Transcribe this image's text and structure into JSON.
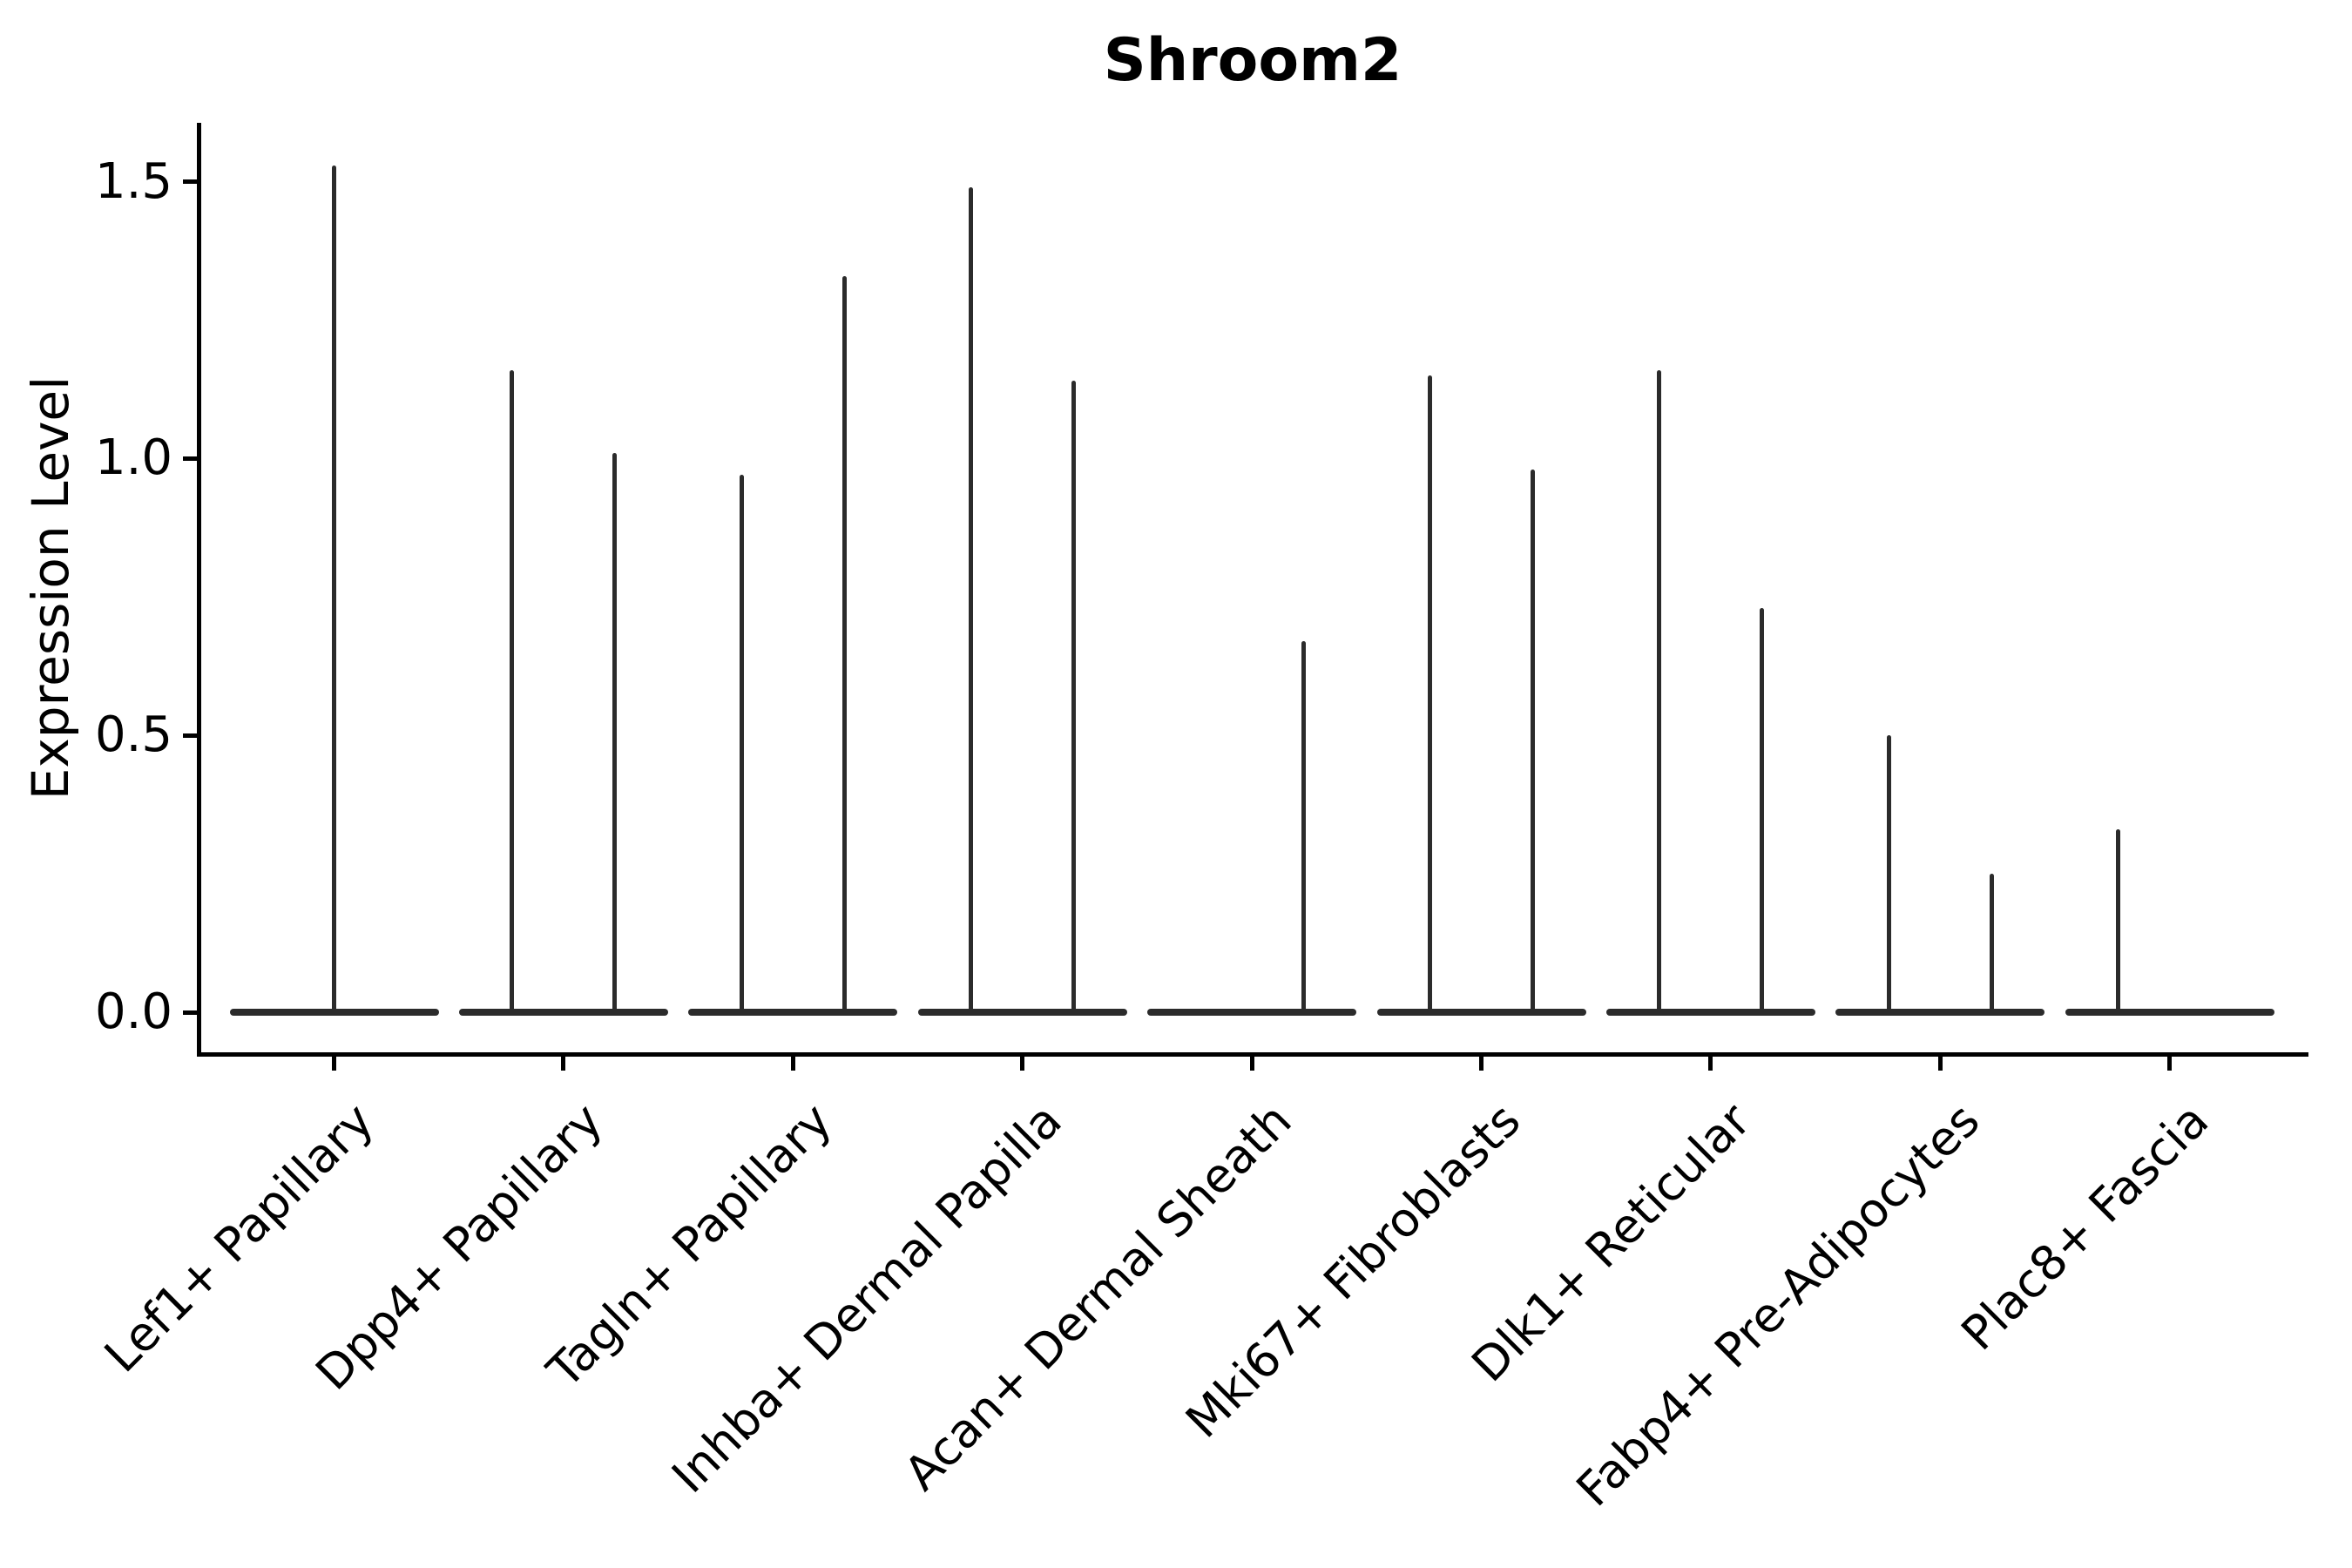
{
  "title": "Shroom2",
  "chart_data": {
    "type": "violin",
    "title": "Shroom2",
    "xlabel": "",
    "ylabel": "Expression Level",
    "ylim": [
      -0.07,
      1.61
    ],
    "grid": false,
    "legend": "none",
    "yticks": {
      "values": [
        0.0,
        0.5,
        1.0,
        1.5
      ],
      "labels": [
        "0.0",
        "0.5",
        "1.0",
        "1.5"
      ]
    },
    "categories": [
      "Lef1+ Papillary",
      "Dpp4+ Papillary",
      "Tagln+ Papillary",
      "Inhba+ Dermal Papilla",
      "Acan+ Dermal Sheath",
      "Mki67+ Fibroblasts",
      "Dlk1+ Reticular",
      "Fabp4+ Pre-Adipocytes",
      "Plac8+ Fascia"
    ],
    "violin_style": "narrow spike violins; dense mass at 0 with thin tail up to peak",
    "violins": [
      {
        "category_index": 0,
        "category": "Lef1+ Papillary",
        "position": "center",
        "peak": 1.53
      },
      {
        "category_index": 1,
        "category": "Dpp4+ Papillary",
        "position": "left",
        "peak": 1.16
      },
      {
        "category_index": 1,
        "category": "Dpp4+ Papillary",
        "position": "right",
        "peak": 1.01
      },
      {
        "category_index": 2,
        "category": "Tagln+ Papillary",
        "position": "left",
        "peak": 0.97
      },
      {
        "category_index": 2,
        "category": "Tagln+ Papillary",
        "position": "right",
        "peak": 1.33
      },
      {
        "category_index": 3,
        "category": "Inhba+ Dermal Papilla",
        "position": "left",
        "peak": 1.49
      },
      {
        "category_index": 3,
        "category": "Inhba+ Dermal Papilla",
        "position": "right",
        "peak": 1.14
      },
      {
        "category_index": 4,
        "category": "Acan+ Dermal Sheath",
        "position": "right",
        "peak": 0.67
      },
      {
        "category_index": 5,
        "category": "Mki67+ Fibroblasts",
        "position": "left",
        "peak": 1.15
      },
      {
        "category_index": 5,
        "category": "Mki67+ Fibroblasts",
        "position": "right",
        "peak": 0.98
      },
      {
        "category_index": 6,
        "category": "Dlk1+ Reticular",
        "position": "left",
        "peak": 1.16
      },
      {
        "category_index": 6,
        "category": "Dlk1+ Reticular",
        "position": "right",
        "peak": 0.73
      },
      {
        "category_index": 7,
        "category": "Fabp4+ Pre-Adipocytes",
        "position": "left",
        "peak": 0.5
      },
      {
        "category_index": 7,
        "category": "Fabp4+ Pre-Adipocytes",
        "position": "right",
        "peak": 0.25
      },
      {
        "category_index": 8,
        "category": "Plac8+ Fascia",
        "position": "left",
        "peak": 0.33
      }
    ],
    "colors": {
      "violin": "#2b2b2b",
      "axis": "#000000",
      "text": "#000000",
      "background": "#ffffff"
    }
  }
}
